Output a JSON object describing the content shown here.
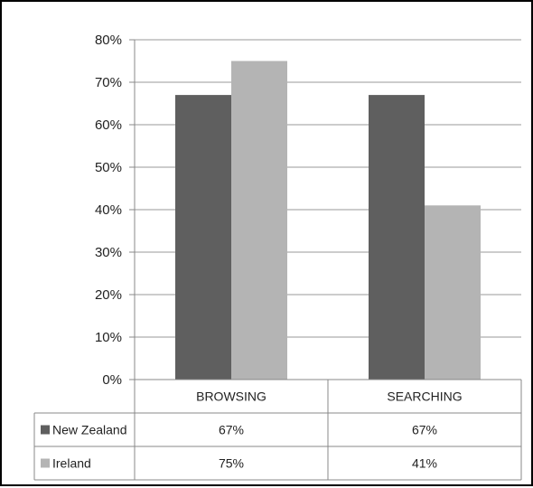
{
  "chart_data": {
    "type": "bar",
    "categories": [
      "BROWSING",
      "SEARCHING"
    ],
    "series": [
      {
        "name": "New Zealand",
        "values": [
          67,
          67
        ],
        "labels": [
          "67%",
          "67%"
        ]
      },
      {
        "name": "Ireland",
        "values": [
          75,
          41
        ],
        "labels": [
          "75%",
          "41%"
        ]
      }
    ],
    "yticks": [
      "0%",
      "10%",
      "20%",
      "30%",
      "40%",
      "50%",
      "60%",
      "70%",
      "80%"
    ],
    "ylim": [
      0,
      80
    ],
    "grid": true,
    "legend": "data-table-left",
    "colors": {
      "New Zealand": "#5f5f5f",
      "Ireland": "#b4b4b4",
      "grid": "#999999",
      "axis": "#888888"
    }
  }
}
